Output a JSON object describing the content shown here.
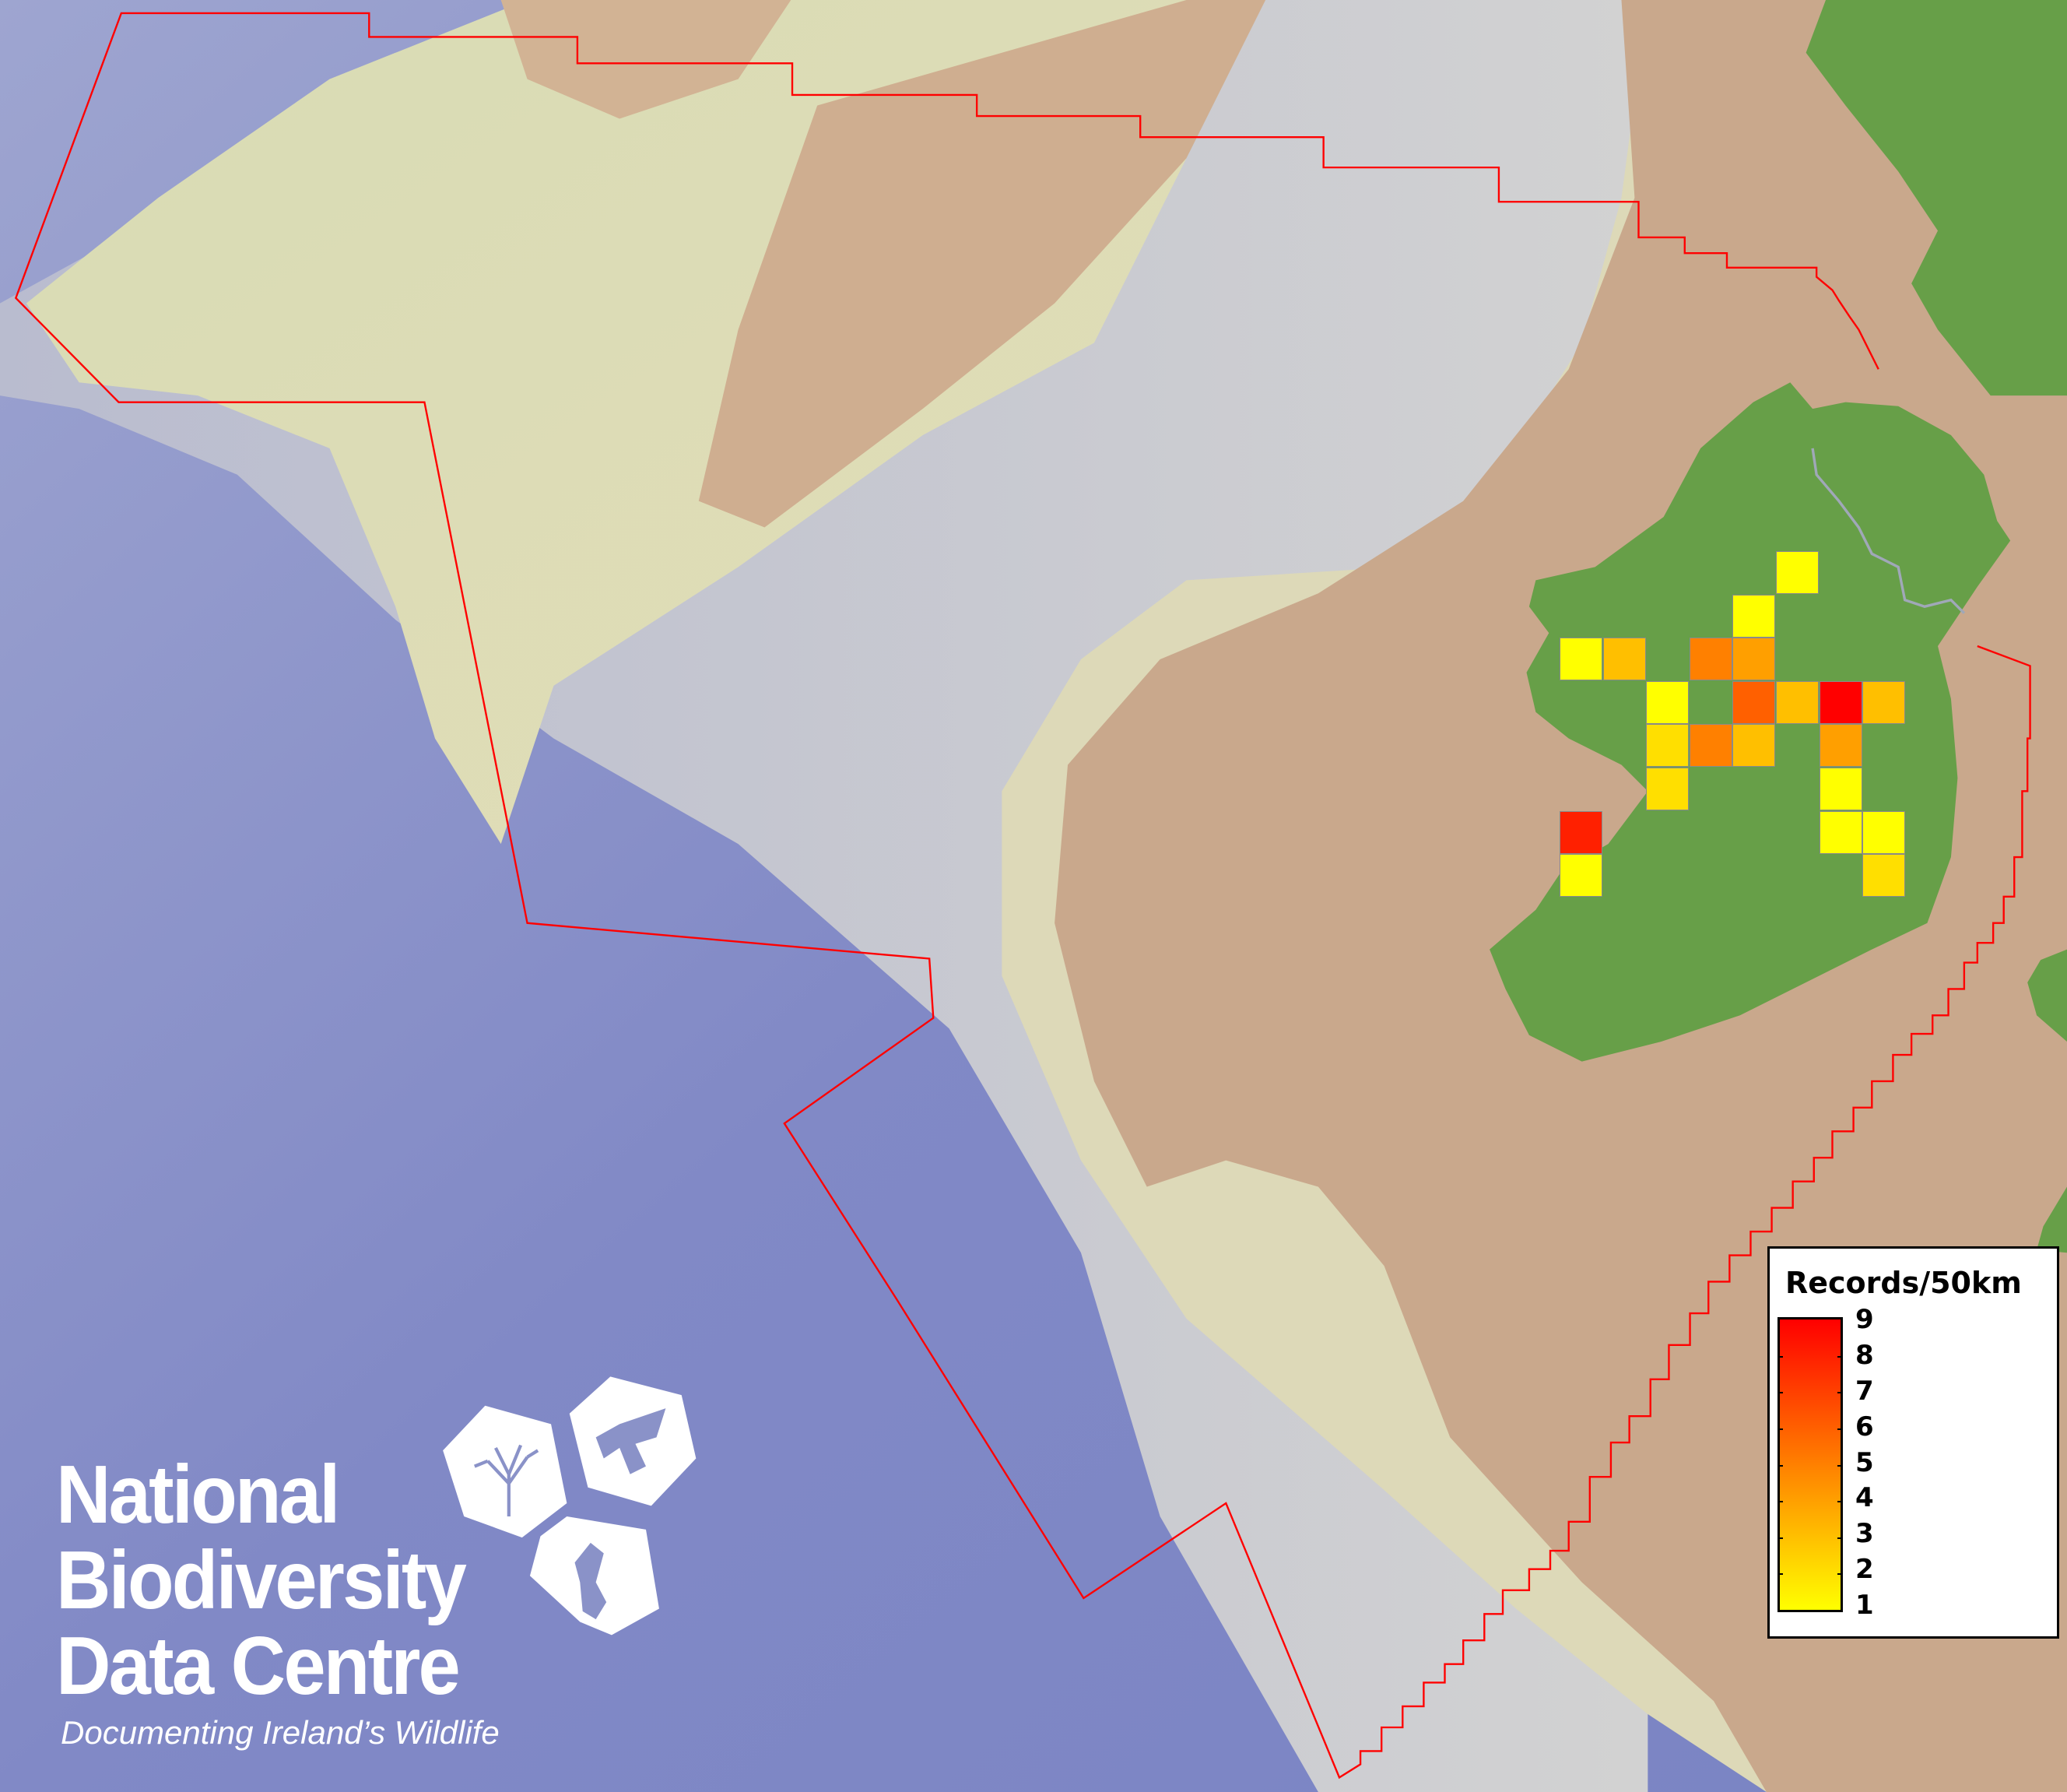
{
  "map": {
    "colors": {
      "deep_sea": "#7f88c6",
      "slope": "#c9ccd6",
      "shelf_pale": "#dcdcb4",
      "shelf_tan": "#c9a88c",
      "land": "#679f48",
      "boundary": "#ff0000",
      "grid_border": "#8a8a8a"
    },
    "chart_data": {
      "type": "heatmap",
      "title": "Records/50km",
      "grid_unit": "50km square",
      "color_scale": {
        "min": 1,
        "max": 9,
        "min_color": "#ffff00",
        "max_color": "#ff0000"
      },
      "cells": [
        {
          "col": 5,
          "row": 0,
          "value": 1
        },
        {
          "col": 4,
          "row": 1,
          "value": 1
        },
        {
          "col": 0,
          "row": 2,
          "value": 1
        },
        {
          "col": 1,
          "row": 2,
          "value": 3
        },
        {
          "col": 3,
          "row": 2,
          "value": 5
        },
        {
          "col": 4,
          "row": 2,
          "value": 4
        },
        {
          "col": 2,
          "row": 3,
          "value": 1
        },
        {
          "col": 4,
          "row": 3,
          "value": 6
        },
        {
          "col": 5,
          "row": 3,
          "value": 3
        },
        {
          "col": 6,
          "row": 3,
          "value": 9
        },
        {
          "col": 7,
          "row": 3,
          "value": 3
        },
        {
          "col": 2,
          "row": 4,
          "value": 2
        },
        {
          "col": 3,
          "row": 4,
          "value": 5
        },
        {
          "col": 4,
          "row": 4,
          "value": 3
        },
        {
          "col": 6,
          "row": 4,
          "value": 4
        },
        {
          "col": 2,
          "row": 5,
          "value": 2
        },
        {
          "col": 6,
          "row": 5,
          "value": 1
        },
        {
          "col": 0,
          "row": 6,
          "value": 8
        },
        {
          "col": 6,
          "row": 6,
          "value": 1
        },
        {
          "col": 7,
          "row": 6,
          "value": 1
        },
        {
          "col": 0,
          "row": 7,
          "value": 1
        },
        {
          "col": 7,
          "row": 7,
          "value": 2
        }
      ]
    }
  },
  "legend": {
    "title": "Records/50km",
    "labels": [
      "9",
      "8",
      "7",
      "6",
      "5",
      "4",
      "3",
      "2",
      "1"
    ]
  },
  "logo": {
    "line1": "National",
    "line2": "Biodiversity",
    "line3": "Data Centre",
    "tagline": "Documenting Ireland’s Wildlife"
  }
}
